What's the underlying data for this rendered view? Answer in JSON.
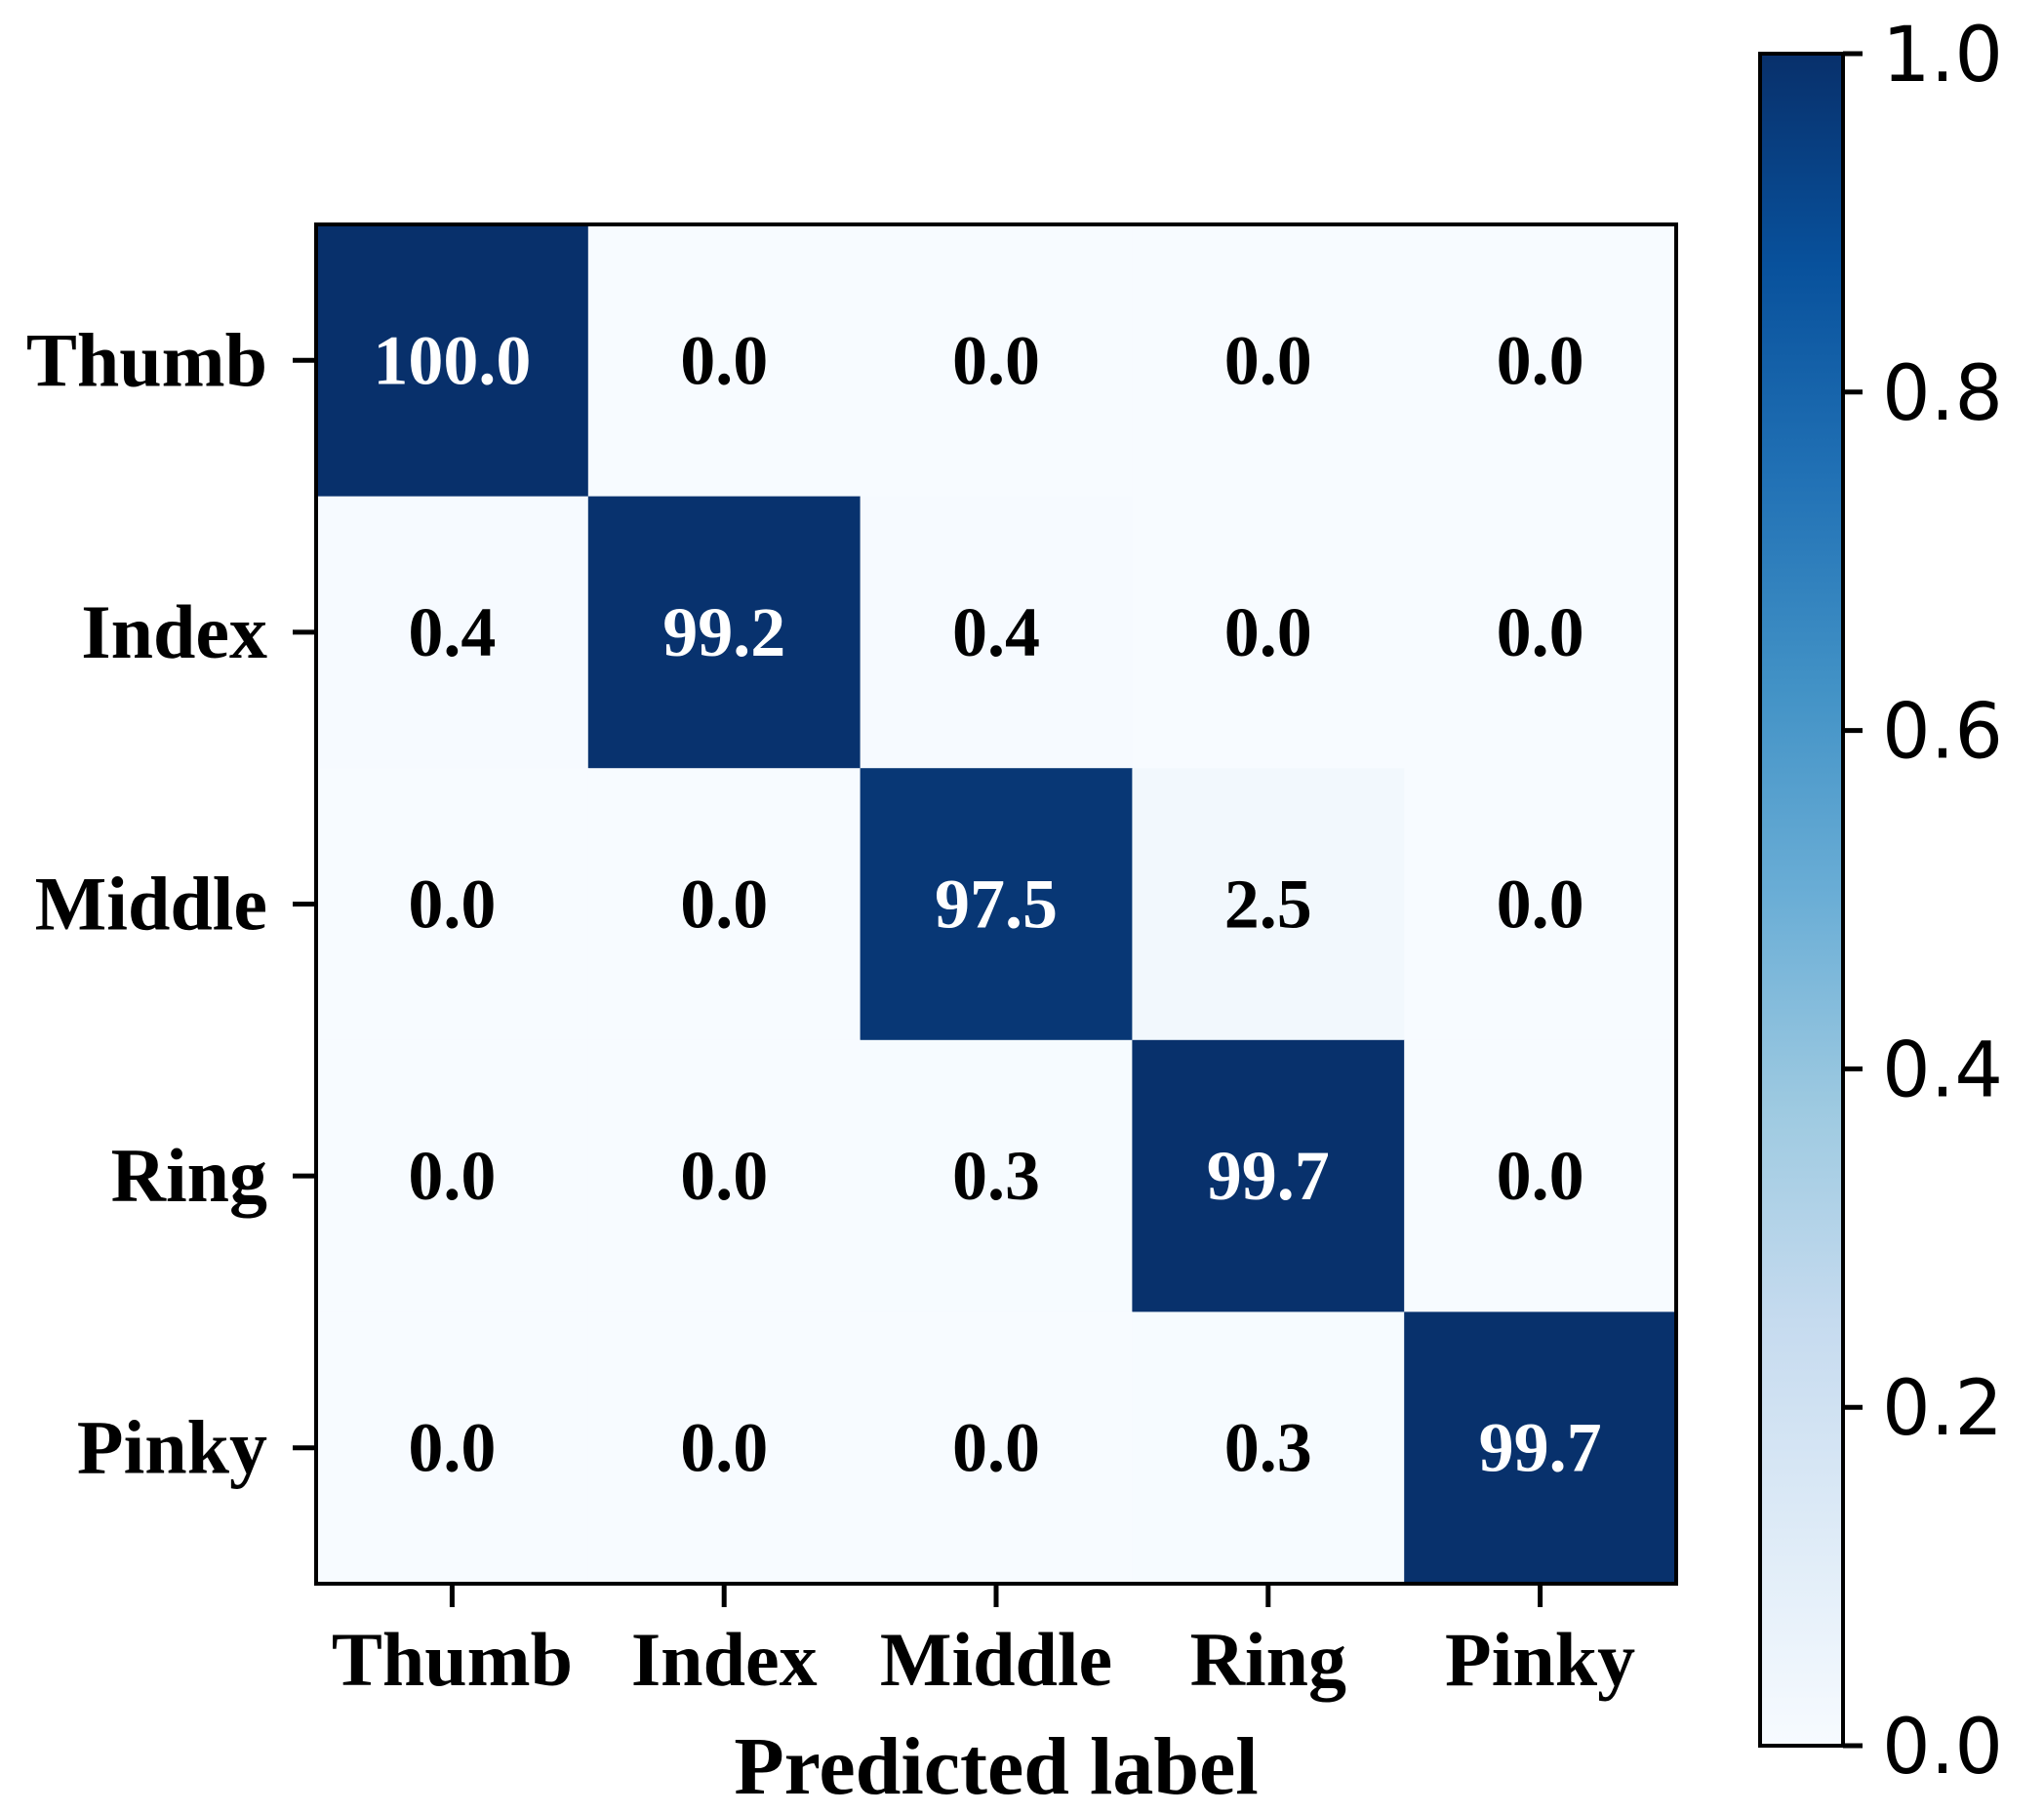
{
  "chart_data": {
    "type": "heatmap",
    "title": "",
    "xlabel": "Predicted label",
    "ylabel": "",
    "x_categories": [
      "Thumb",
      "Index",
      "Middle",
      "Ring",
      "Pinky"
    ],
    "y_categories": [
      "Thumb",
      "Index",
      "Middle",
      "Ring",
      "Pinky"
    ],
    "values": [
      [
        100.0,
        0.0,
        0.0,
        0.0,
        0.0
      ],
      [
        0.4,
        99.2,
        0.4,
        0.0,
        0.0
      ],
      [
        0.0,
        0.0,
        97.5,
        2.5,
        0.0
      ],
      [
        0.0,
        0.0,
        0.3,
        99.7,
        0.0
      ],
      [
        0.0,
        0.0,
        0.0,
        0.3,
        99.7
      ]
    ],
    "value_format": "0.0",
    "colorbar": {
      "range": [
        0.0,
        1.0
      ],
      "ticks": [
        "0.0",
        "0.2",
        "0.4",
        "0.6",
        "0.8",
        "1.0"
      ],
      "colormap": "Blues",
      "placement": "right"
    },
    "colors": {
      "low": "#f7fbff",
      "high": "#08306b",
      "text_dark": "#000000",
      "text_light": "#ffffff"
    }
  }
}
